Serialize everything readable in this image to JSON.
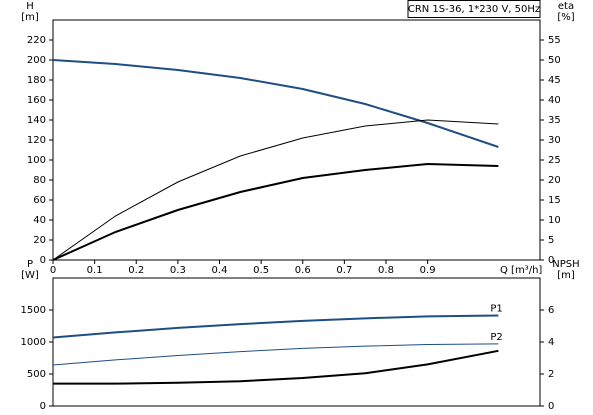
{
  "chart_data": [
    {
      "type": "line",
      "title": "CRN 1S-36, 1*230 V, 50Hz",
      "ylabel": "H",
      "yunit": "[m]",
      "y2label": "eta",
      "y2unit": "[%]",
      "xlabel": "Q [m³/h]",
      "x": [
        0,
        0.15,
        0.3,
        0.45,
        0.6,
        0.75,
        0.9,
        1.07
      ],
      "xlim": [
        0,
        1.17
      ],
      "xticks": [
        0,
        0.1,
        0.2,
        0.3,
        0.4,
        0.5,
        0.6,
        0.7,
        0.8,
        0.9
      ],
      "ylim": [
        0,
        240
      ],
      "yticks": [
        0,
        20,
        40,
        60,
        80,
        100,
        120,
        140,
        160,
        180,
        200,
        220
      ],
      "y2lim": [
        0,
        60
      ],
      "y2ticks": [
        0,
        5,
        10,
        15,
        20,
        25,
        30,
        35,
        40,
        45,
        50,
        55
      ],
      "series": [
        {
          "color": "#1f4e84",
          "line_style": "thick",
          "values": [
            200,
            196,
            190,
            182,
            171,
            156,
            137,
            113
          ]
        },
        {
          "color": "#000000",
          "line_style": "thin",
          "axis": "y2",
          "values": [
            0,
            11,
            19.5,
            26,
            30.5,
            33.5,
            35,
            34
          ]
        },
        {
          "color": "#000000",
          "line_style": "thick",
          "axis": "y2",
          "values": [
            0,
            7,
            12.5,
            17,
            20.5,
            22.5,
            24,
            23.5
          ]
        }
      ]
    },
    {
      "type": "line",
      "ylabel": "P",
      "yunit": "[W]",
      "y2label": "NPSH",
      "y2unit": "[m]",
      "x": [
        0,
        0.15,
        0.3,
        0.45,
        0.6,
        0.75,
        0.9,
        1.07
      ],
      "xlim": [
        0,
        1.17
      ],
      "ylim": [
        0,
        2000
      ],
      "yticks": [
        0,
        500,
        1000,
        1500
      ],
      "y2lim": [
        0,
        8
      ],
      "y2ticks": [
        0,
        2,
        4,
        6
      ],
      "series": [
        {
          "name": "P1",
          "color": "#1f4e84",
          "line_style": "thick",
          "values": [
            1070,
            1150,
            1220,
            1280,
            1330,
            1370,
            1400,
            1415
          ]
        },
        {
          "name": "P2",
          "color": "#1f4e84",
          "line_style": "thin",
          "values": [
            640,
            720,
            790,
            850,
            900,
            935,
            960,
            970
          ]
        },
        {
          "color": "#000000",
          "line_style": "thick",
          "axis": "y2",
          "values": [
            1.4,
            1.4,
            1.45,
            1.55,
            1.75,
            2.05,
            2.6,
            3.45
          ]
        }
      ]
    }
  ]
}
